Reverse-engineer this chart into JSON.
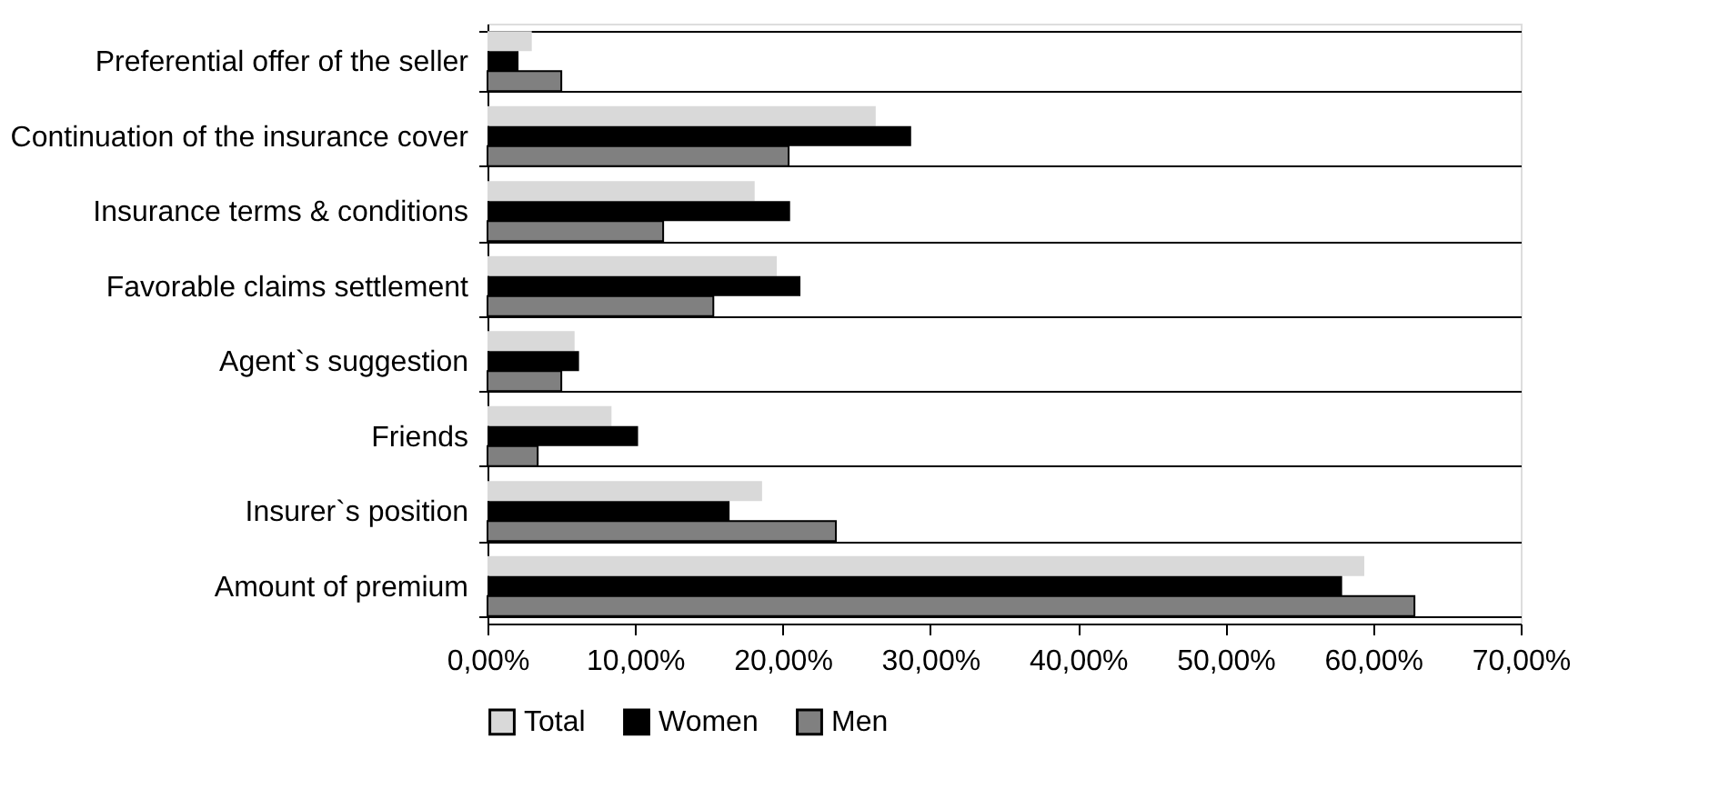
{
  "chart_data": {
    "type": "bar",
    "orientation": "horizontal",
    "categories": [
      "Preferential offer of the seller",
      "Continuation of the insurance cover",
      "Insurance terms & conditions",
      "Favorable claims settlement",
      "Agent`s suggestion",
      "Friends",
      "Insurer`s position",
      "Amount of premium"
    ],
    "series": [
      {
        "name": "Total",
        "color": "#d9d9d9",
        "values": [
          3.0,
          26.3,
          18.1,
          19.6,
          5.9,
          8.4,
          18.6,
          59.4
        ]
      },
      {
        "name": "Women",
        "color": "#000000",
        "values": [
          2.1,
          28.7,
          20.5,
          21.2,
          6.2,
          10.2,
          16.4,
          57.9
        ]
      },
      {
        "name": "Men",
        "color": "#808080",
        "values": [
          5.0,
          20.4,
          11.9,
          15.3,
          5.0,
          3.4,
          23.6,
          62.8
        ]
      }
    ],
    "xlim": [
      0,
      70
    ],
    "xticks": [
      {
        "value": 0,
        "label": "0,00%"
      },
      {
        "value": 10,
        "label": "10,00%"
      },
      {
        "value": 20,
        "label": "20,00%"
      },
      {
        "value": 30,
        "label": "30,00%"
      },
      {
        "value": 40,
        "label": "40,00%"
      },
      {
        "value": 50,
        "label": "50,00%"
      },
      {
        "value": 60,
        "label": "60,00%"
      },
      {
        "value": 70,
        "label": "70,00%"
      }
    ],
    "grid": "y",
    "legend": "bottom"
  }
}
